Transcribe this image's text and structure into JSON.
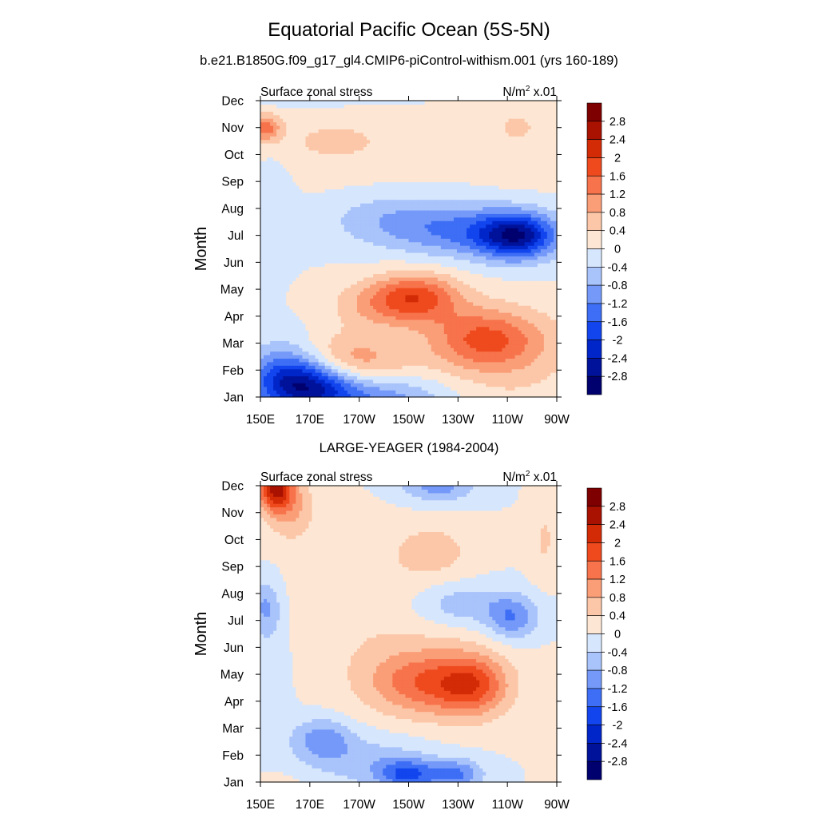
{
  "figure": {
    "title": "Equatorial Pacific Ocean (5S-5N)",
    "subtitle": "b.e21.B1850G.f09_g17_gl4.CMIP6-piControl-withism.001 (yrs 160-189)"
  },
  "chart_data": [
    {
      "type": "heatmap",
      "title": "",
      "left_label": "Surface zonal stress",
      "right_label_base": "N/m",
      "right_label_sup": "2",
      "right_label_tail": " x.01",
      "ylabel": "Month",
      "x_ticks": [
        "150E",
        "170E",
        "170W",
        "150W",
        "130W",
        "110W",
        "90W"
      ],
      "x_range_deg_east": [
        150,
        270
      ],
      "y_ticks": [
        "Jan",
        "Feb",
        "Mar",
        "Apr",
        "May",
        "Jun",
        "Jul",
        "Aug",
        "Sep",
        "Oct",
        "Nov",
        "Dec"
      ],
      "features": [
        {
          "lon": 213,
          "mon": 3.7,
          "a": 1.75,
          "w": 18,
          "h": 0.9
        },
        {
          "lon": 195,
          "mon": 3.4,
          "a": 0.6,
          "w": 18,
          "h": 0.9
        },
        {
          "lon": 240,
          "mon": 2.2,
          "a": 1.3,
          "w": 22,
          "h": 1.1
        },
        {
          "lon": 186,
          "mon": 1.3,
          "a": 1.2,
          "w": 22,
          "h": 1.0
        },
        {
          "lon": 250,
          "mon": 1.7,
          "a": 0.6,
          "w": 30,
          "h": 1.6
        },
        {
          "lon": 170,
          "mon": 0.4,
          "a": -2.4,
          "w": 20,
          "h": 1.0
        },
        {
          "lon": 160,
          "mon": 1.0,
          "a": -1.0,
          "w": 15,
          "h": 1.2
        },
        {
          "lon": 200,
          "mon": 0.0,
          "a": -1.0,
          "w": 25,
          "h": 0.8
        },
        {
          "lon": 254,
          "mon": 6.0,
          "a": -2.5,
          "w": 16,
          "h": 0.85
        },
        {
          "lon": 230,
          "mon": 6.2,
          "a": -1.1,
          "w": 26,
          "h": 1.0
        },
        {
          "lon": 200,
          "mon": 6.6,
          "a": -0.6,
          "w": 25,
          "h": 1.0
        },
        {
          "lon": 155,
          "mon": 7.5,
          "a": -0.4,
          "w": 8,
          "h": 2.0
        },
        {
          "lon": 152,
          "mon": 10.0,
          "a": 1.3,
          "w": 6,
          "h": 0.5
        },
        {
          "lon": 180,
          "mon": 9.5,
          "a": 0.45,
          "w": 40,
          "h": 1.4
        },
        {
          "lon": 255,
          "mon": 10.0,
          "a": 0.4,
          "w": 25,
          "h": 1.8
        }
      ]
    },
    {
      "type": "heatmap",
      "title": "LARGE-YEAGER (1984-2004)",
      "left_label": "Surface zonal stress",
      "right_label_base": "N/m",
      "right_label_sup": "2",
      "right_label_tail": " x.01",
      "ylabel": "Month",
      "x_ticks": [
        "150E",
        "170E",
        "170W",
        "150W",
        "130W",
        "110W",
        "90W"
      ],
      "x_range_deg_east": [
        150,
        270
      ],
      "y_ticks": [
        "Jan",
        "Feb",
        "Mar",
        "Apr",
        "May",
        "Jun",
        "Jul",
        "Aug",
        "Sep",
        "Oct",
        "Nov",
        "Dec"
      ],
      "features": [
        {
          "lon": 156,
          "mon": 10.9,
          "a": 2.2,
          "w": 7,
          "h": 0.8
        },
        {
          "lon": 162,
          "mon": 10.2,
          "a": 0.8,
          "w": 10,
          "h": 1.2
        },
        {
          "lon": 236,
          "mon": 3.6,
          "a": 1.4,
          "w": 14,
          "h": 1.1
        },
        {
          "lon": 215,
          "mon": 3.7,
          "a": 0.9,
          "w": 20,
          "h": 1.1
        },
        {
          "lon": 220,
          "mon": 3.8,
          "a": 0.6,
          "w": 30,
          "h": 1.6
        },
        {
          "lon": 220,
          "mon": 8.6,
          "a": 0.55,
          "w": 16,
          "h": 1.0
        },
        {
          "lon": 190,
          "mon": 6.5,
          "a": 0.3,
          "w": 35,
          "h": 3.0
        },
        {
          "lon": 175,
          "mon": 1.6,
          "a": -1.0,
          "w": 12,
          "h": 0.8
        },
        {
          "lon": 210,
          "mon": 0.3,
          "a": -1.5,
          "w": 12,
          "h": 0.55
        },
        {
          "lon": 230,
          "mon": 0.3,
          "a": -1.2,
          "w": 10,
          "h": 0.55
        },
        {
          "lon": 195,
          "mon": 0.8,
          "a": -0.6,
          "w": 25,
          "h": 1.0
        },
        {
          "lon": 252,
          "mon": 6.1,
          "a": -1.1,
          "w": 10,
          "h": 0.8
        },
        {
          "lon": 232,
          "mon": 6.6,
          "a": -0.7,
          "w": 20,
          "h": 0.8
        },
        {
          "lon": 222,
          "mon": 11.0,
          "a": -1.0,
          "w": 15,
          "h": 0.6
        },
        {
          "lon": 152,
          "mon": 6.5,
          "a": -0.8,
          "w": 6,
          "h": 1.0
        },
        {
          "lon": 155,
          "mon": 4.5,
          "a": -0.3,
          "w": 8,
          "h": 3.0
        },
        {
          "lon": 265,
          "mon": 9.0,
          "a": 0.45,
          "w": 6,
          "h": 1.5
        }
      ]
    }
  ],
  "colorbar": {
    "labels": [
      "2.8",
      "2.4",
      "2",
      "1.6",
      "1.2",
      "0.8",
      "0.4",
      "0",
      "-0.4",
      "-0.8",
      "-1.2",
      "-1.6",
      "-2",
      "-2.4",
      "-2.8"
    ],
    "colors": [
      "#00006e",
      "#001299",
      "#0026c9",
      "#1245ee",
      "#3d6ef5",
      "#7499f9",
      "#a9c3fb",
      "#d6e6fd",
      "#fde7d4",
      "#fcc7a8",
      "#fa9e78",
      "#f7734b",
      "#ee4a1e",
      "#d22b06",
      "#a91100",
      "#7f0000"
    ]
  }
}
